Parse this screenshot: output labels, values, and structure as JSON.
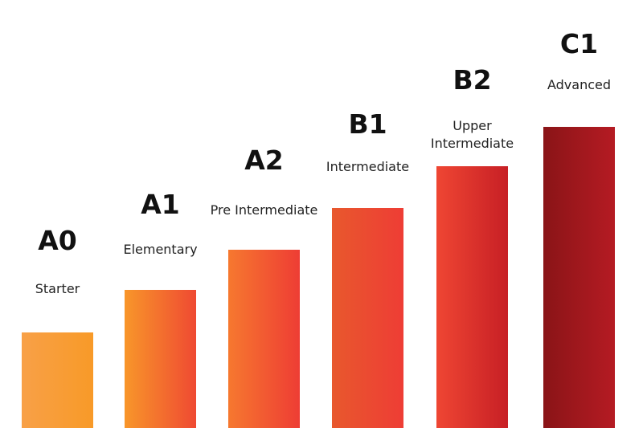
{
  "levels": [
    {
      "code": "A0",
      "label": "Starter"
    },
    {
      "code": "A1",
      "label": "Elementary"
    },
    {
      "code": "A2",
      "label": "Pre Intermediate"
    },
    {
      "code": "B1",
      "label": "Intermediate"
    },
    {
      "code": "B2",
      "label": "Upper Intermediate"
    },
    {
      "code": "C1",
      "label": "Advanced"
    }
  ]
}
